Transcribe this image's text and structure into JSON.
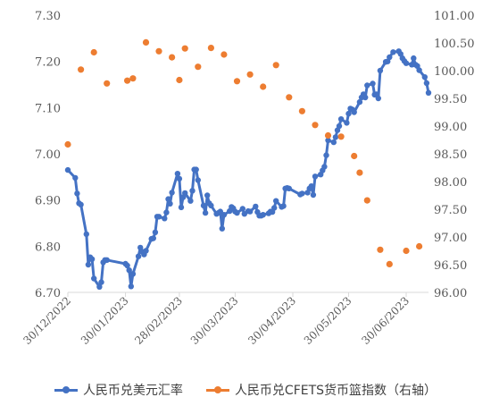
{
  "chart_data": {
    "type": "line",
    "colors": {
      "cny_usd": "#4472C4",
      "cfets": "#ED7D31"
    },
    "x_axis": {
      "range": [
        "2022-12-30",
        "2023-07-12"
      ],
      "ticks": [
        "2022-12-30",
        "2023-01-30",
        "2023-02-28",
        "2023-03-30",
        "2023-04-30",
        "2023-05-30",
        "2023-06-30"
      ],
      "tick_labels": [
        "30/12/2022",
        "30/01/2023",
        "28/02/2023",
        "30/03/2023",
        "30/04/2023",
        "30/05/2023",
        "30/06/2023"
      ]
    },
    "y_left": {
      "min": 6.7,
      "max": 7.3,
      "ticks": [
        "6.70",
        "6.80",
        "6.90",
        "7.00",
        "7.10",
        "7.20",
        "7.30"
      ]
    },
    "y_right": {
      "min": 96.0,
      "max": 101.0,
      "ticks": [
        "96.00",
        "96.50",
        "97.00",
        "97.50",
        "98.00",
        "98.50",
        "99.00",
        "99.50",
        "100.00",
        "100.50",
        "101.00"
      ]
    },
    "grid": false,
    "legend_position": "bottom",
    "series": [
      {
        "name": "人民币兑美元汇率",
        "axis": "left",
        "style": "line-markers",
        "data": [
          [
            "2022-12-30",
            6.965
          ],
          [
            "2023-01-03",
            6.948
          ],
          [
            "2023-01-04",
            6.914
          ],
          [
            "2023-01-05",
            6.893
          ],
          [
            "2023-01-06",
            6.89
          ],
          [
            "2023-01-09",
            6.826
          ],
          [
            "2023-01-10",
            6.76
          ],
          [
            "2023-01-11",
            6.776
          ],
          [
            "2023-01-12",
            6.772
          ],
          [
            "2023-01-13",
            6.73
          ],
          [
            "2023-01-16",
            6.712
          ],
          [
            "2023-01-17",
            6.722
          ],
          [
            "2023-01-18",
            6.765
          ],
          [
            "2023-01-19",
            6.77
          ],
          [
            "2023-01-20",
            6.77
          ],
          [
            "2023-01-30",
            6.762
          ],
          [
            "2023-01-31",
            6.758
          ],
          [
            "2023-02-01",
            6.748
          ],
          [
            "2023-02-02",
            6.713
          ],
          [
            "2023-02-03",
            6.74
          ],
          [
            "2023-02-06",
            6.778
          ],
          [
            "2023-02-07",
            6.797
          ],
          [
            "2023-02-08",
            6.788
          ],
          [
            "2023-02-09",
            6.782
          ],
          [
            "2023-02-10",
            6.79
          ],
          [
            "2023-02-13",
            6.816
          ],
          [
            "2023-02-14",
            6.817
          ],
          [
            "2023-02-15",
            6.83
          ],
          [
            "2023-02-16",
            6.864
          ],
          [
            "2023-02-17",
            6.864
          ],
          [
            "2023-02-20",
            6.86
          ],
          [
            "2023-02-21",
            6.873
          ],
          [
            "2023-02-22",
            6.902
          ],
          [
            "2023-02-23",
            6.892
          ],
          [
            "2023-02-24",
            6.916
          ],
          [
            "2023-02-27",
            6.957
          ],
          [
            "2023-02-28",
            6.946
          ],
          [
            "2023-03-01",
            6.884
          ],
          [
            "2023-03-02",
            6.906
          ],
          [
            "2023-03-03",
            6.915
          ],
          [
            "2023-03-06",
            6.898
          ],
          [
            "2023-03-07",
            6.92
          ],
          [
            "2023-03-08",
            6.966
          ],
          [
            "2023-03-09",
            6.966
          ],
          [
            "2023-03-10",
            6.943
          ],
          [
            "2023-03-13",
            6.888
          ],
          [
            "2023-03-14",
            6.872
          ],
          [
            "2023-03-15",
            6.91
          ],
          [
            "2023-03-16",
            6.893
          ],
          [
            "2023-03-17",
            6.888
          ],
          [
            "2023-03-20",
            6.87
          ],
          [
            "2023-03-21",
            6.872
          ],
          [
            "2023-03-22",
            6.875
          ],
          [
            "2023-03-23",
            6.838
          ],
          [
            "2023-03-24",
            6.868
          ],
          [
            "2023-03-27",
            6.876
          ],
          [
            "2023-03-28",
            6.885
          ],
          [
            "2023-03-29",
            6.882
          ],
          [
            "2023-03-30",
            6.875
          ],
          [
            "2023-03-31",
            6.872
          ],
          [
            "2023-04-03",
            6.881
          ],
          [
            "2023-04-04",
            6.87
          ],
          [
            "2023-04-06",
            6.876
          ],
          [
            "2023-04-07",
            6.875
          ],
          [
            "2023-04-10",
            6.886
          ],
          [
            "2023-04-11",
            6.874
          ],
          [
            "2023-04-12",
            6.866
          ],
          [
            "2023-04-13",
            6.866
          ],
          [
            "2023-04-14",
            6.868
          ],
          [
            "2023-04-17",
            6.871
          ],
          [
            "2023-04-18",
            6.875
          ],
          [
            "2023-04-19",
            6.874
          ],
          [
            "2023-04-20",
            6.883
          ],
          [
            "2023-04-21",
            6.898
          ],
          [
            "2023-04-24",
            6.885
          ],
          [
            "2023-04-25",
            6.887
          ],
          [
            "2023-04-26",
            6.925
          ],
          [
            "2023-04-27",
            6.926
          ],
          [
            "2023-04-28",
            6.925
          ],
          [
            "2023-05-04",
            6.912
          ],
          [
            "2023-05-05",
            6.914
          ],
          [
            "2023-05-08",
            6.916
          ],
          [
            "2023-05-09",
            6.925
          ],
          [
            "2023-05-10",
            6.93
          ],
          [
            "2023-05-11",
            6.911
          ],
          [
            "2023-05-12",
            6.951
          ],
          [
            "2023-05-15",
            6.955
          ],
          [
            "2023-05-16",
            6.964
          ],
          [
            "2023-05-17",
            6.972
          ],
          [
            "2023-05-18",
            6.997
          ],
          [
            "2023-05-19",
            7.029
          ],
          [
            "2023-05-22",
            7.025
          ],
          [
            "2023-05-23",
            7.036
          ],
          [
            "2023-05-24",
            7.051
          ],
          [
            "2023-05-25",
            7.06
          ],
          [
            "2023-05-26",
            7.075
          ],
          [
            "2023-05-29",
            7.067
          ],
          [
            "2023-05-30",
            7.087
          ],
          [
            "2023-05-31",
            7.098
          ],
          [
            "2023-06-01",
            7.096
          ],
          [
            "2023-06-02",
            7.09
          ],
          [
            "2023-06-05",
            7.112
          ],
          [
            "2023-06-06",
            7.122
          ],
          [
            "2023-06-07",
            7.129
          ],
          [
            "2023-06-08",
            7.122
          ],
          [
            "2023-06-09",
            7.148
          ],
          [
            "2023-06-12",
            7.152
          ],
          [
            "2023-06-13",
            7.128
          ],
          [
            "2023-06-14",
            7.129
          ],
          [
            "2023-06-15",
            7.12
          ],
          [
            "2023-06-16",
            7.18
          ],
          [
            "2023-06-19",
            7.199
          ],
          [
            "2023-06-20",
            7.2
          ],
          [
            "2023-06-21",
            7.209
          ],
          [
            "2023-06-23",
            7.22
          ],
          [
            "2023-06-26",
            7.222
          ],
          [
            "2023-06-27",
            7.216
          ],
          [
            "2023-06-28",
            7.207
          ],
          [
            "2023-06-29",
            7.201
          ],
          [
            "2023-06-30",
            7.196
          ],
          [
            "2023-07-03",
            7.193
          ],
          [
            "2023-07-04",
            7.207
          ],
          [
            "2023-07-05",
            7.193
          ],
          [
            "2023-07-06",
            7.19
          ],
          [
            "2023-07-07",
            7.181
          ],
          [
            "2023-07-10",
            7.166
          ],
          [
            "2023-07-11",
            7.153
          ],
          [
            "2023-07-12",
            7.132
          ]
        ]
      },
      {
        "name": "人民币兑CFETS货币篮指数（右轴）",
        "axis": "right",
        "style": "markers",
        "data": [
          [
            "2022-12-30",
            98.67
          ],
          [
            "2023-01-06",
            100.02
          ],
          [
            "2023-01-13",
            100.33
          ],
          [
            "2023-01-20",
            99.77
          ],
          [
            "2023-01-31",
            99.82
          ],
          [
            "2023-02-03",
            99.86
          ],
          [
            "2023-02-10",
            100.51
          ],
          [
            "2023-02-17",
            100.35
          ],
          [
            "2023-02-24",
            100.24
          ],
          [
            "2023-02-28",
            99.83
          ],
          [
            "2023-03-03",
            100.4
          ],
          [
            "2023-03-10",
            100.07
          ],
          [
            "2023-03-17",
            100.41
          ],
          [
            "2023-03-24",
            100.29
          ],
          [
            "2023-03-31",
            99.81
          ],
          [
            "2023-04-07",
            99.93
          ],
          [
            "2023-04-14",
            99.71
          ],
          [
            "2023-04-21",
            100.1
          ],
          [
            "2023-04-28",
            99.52
          ],
          [
            "2023-05-05",
            99.27
          ],
          [
            "2023-05-12",
            99.02
          ],
          [
            "2023-05-19",
            98.83
          ],
          [
            "2023-05-26",
            98.81
          ],
          [
            "2023-06-02",
            98.46
          ],
          [
            "2023-06-05",
            98.16
          ],
          [
            "2023-06-09",
            97.66
          ],
          [
            "2023-06-16",
            96.77
          ],
          [
            "2023-06-21",
            96.51
          ],
          [
            "2023-06-30",
            96.75
          ],
          [
            "2023-07-07",
            96.83
          ]
        ]
      }
    ]
  }
}
